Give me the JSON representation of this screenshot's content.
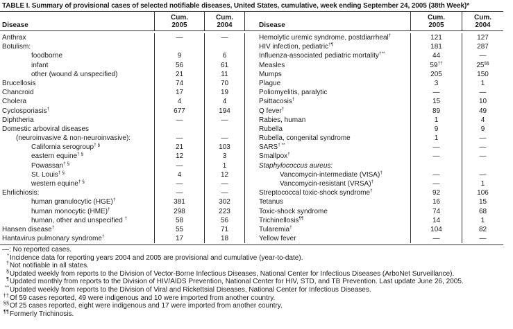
{
  "title": "TABLE I. Summary of provisional cases of selected notifiable diseases, United States, cumulative, week ending September 24, 2005 (38th Week)*",
  "header": {
    "disease": "Disease",
    "cum": "Cum.",
    "y2005": "2005",
    "y2004": "2004"
  },
  "left_rows": [
    {
      "label": "Anthrax",
      "sup": "",
      "indent": 0,
      "v2005": "—",
      "v2004": "—"
    },
    {
      "label": "Botulism:",
      "sup": "",
      "indent": 0,
      "v2005": "",
      "v2004": ""
    },
    {
      "label": "foodborne",
      "sup": "",
      "indent": 2,
      "v2005": "9",
      "v2004": "6"
    },
    {
      "label": "infant",
      "sup": "",
      "indent": 2,
      "v2005": "56",
      "v2004": "61"
    },
    {
      "label": "other (wound & unspecified)",
      "sup": "",
      "indent": 2,
      "v2005": "21",
      "v2004": "11"
    },
    {
      "label": "Brucellosis",
      "sup": "",
      "indent": 0,
      "v2005": "74",
      "v2004": "70"
    },
    {
      "label": "Chancroid",
      "sup": "",
      "indent": 0,
      "v2005": "17",
      "v2004": "19"
    },
    {
      "label": "Cholera",
      "sup": "",
      "indent": 0,
      "v2005": "4",
      "v2004": "4"
    },
    {
      "label": "Cyclosporiasis",
      "sup": "†",
      "indent": 0,
      "v2005": "677",
      "v2004": "194"
    },
    {
      "label": "Diphtheria",
      "sup": "",
      "indent": 0,
      "v2005": "—",
      "v2004": "—"
    },
    {
      "label": "Domestic arboviral diseases",
      "sup": "",
      "indent": 0,
      "v2005": "",
      "v2004": ""
    },
    {
      "label": "(neuroinvasive & non-neuroinvasive):",
      "sup": "",
      "indent": 1,
      "v2005": "—",
      "v2004": "—"
    },
    {
      "label": "California serogroup",
      "sup": "† §",
      "indent": 2,
      "v2005": "21",
      "v2004": "103"
    },
    {
      "label": "eastern equine",
      "sup": "† §",
      "indent": 2,
      "v2005": "12",
      "v2004": "3"
    },
    {
      "label": "Powassan",
      "sup": "† §",
      "indent": 2,
      "v2005": "—",
      "v2004": "1"
    },
    {
      "label": "St. Louis",
      "sup": "† §",
      "indent": 2,
      "v2005": "4",
      "v2004": "12"
    },
    {
      "label": "western equine",
      "sup": "† §",
      "indent": 2,
      "v2005": "—",
      "v2004": "—"
    },
    {
      "label": "Ehrlichiosis:",
      "sup": "",
      "indent": 0,
      "v2005": "—",
      "v2004": "—"
    },
    {
      "label": "human granulocytic (HGE)",
      "sup": "†",
      "indent": 2,
      "v2005": "381",
      "v2004": "302"
    },
    {
      "label": "human monocytic (HME)",
      "sup": "†",
      "indent": 2,
      "v2005": "298",
      "v2004": "223"
    },
    {
      "label": "human, other and unspecified ",
      "sup": "†",
      "indent": 2,
      "v2005": "58",
      "v2004": "56"
    },
    {
      "label": "Hansen disease",
      "sup": "†",
      "indent": 0,
      "v2005": "55",
      "v2004": "71"
    },
    {
      "label": "Hantavirus pulmonary syndrome",
      "sup": "†",
      "indent": 0,
      "v2005": "17",
      "v2004": "18"
    }
  ],
  "right_rows": [
    {
      "label": "Hemolytic uremic syndrome, postdiarrheal",
      "sup": "†",
      "indent": 0,
      "v2005": "121",
      "v2004": "127"
    },
    {
      "label": "HIV infection, pediatric",
      "sup": "†¶",
      "indent": 0,
      "v2005": "181",
      "v2004": "287"
    },
    {
      "label": "Influenza-associated pediatric mortality",
      "sup": "†**",
      "indent": 0,
      "v2005": "44",
      "v2004": "—"
    },
    {
      "label": "Measles",
      "sup": "",
      "indent": 0,
      "v2005": "59",
      "v2005_sup": "††",
      "v2004": "25",
      "v2004_sup": "§§"
    },
    {
      "label": "Mumps",
      "sup": "",
      "indent": 0,
      "v2005": "205",
      "v2004": "150"
    },
    {
      "label": "Plague",
      "sup": "",
      "indent": 0,
      "v2005": "3",
      "v2004": "1"
    },
    {
      "label": "Poliomyelitis, paralytic",
      "sup": "",
      "indent": 0,
      "v2005": "—",
      "v2004": "—"
    },
    {
      "label": "Psittacosis",
      "sup": "†",
      "indent": 0,
      "v2005": "15",
      "v2004": "10"
    },
    {
      "label": "Q fever",
      "sup": "†",
      "indent": 0,
      "v2005": "89",
      "v2004": "49"
    },
    {
      "label": "Rabies, human",
      "sup": "",
      "indent": 0,
      "v2005": "1",
      "v2004": "4"
    },
    {
      "label": "Rubella",
      "sup": "",
      "indent": 0,
      "v2005": "9",
      "v2004": "9"
    },
    {
      "label": "Rubella, congenital syndrome",
      "sup": "",
      "indent": 0,
      "v2005": "1",
      "v2004": "—"
    },
    {
      "label": "SARS",
      "sup": "† **",
      "indent": 0,
      "v2005": "—",
      "v2004": "—"
    },
    {
      "label": "Smallpox",
      "sup": "†",
      "indent": 0,
      "v2005": "—",
      "v2004": "—"
    },
    {
      "label": "Staphylococcus aureus:",
      "sup": "",
      "indent": 0,
      "italic": true,
      "v2005": "",
      "v2004": ""
    },
    {
      "label": "Vancomycin-intermediate (VISA)",
      "sup": "†",
      "indent": 3,
      "v2005": "—",
      "v2004": "—"
    },
    {
      "label": "Vancomycin-resistant (VRSA)",
      "sup": "†",
      "indent": 3,
      "v2005": "—",
      "v2004": "1"
    },
    {
      "label": "Streptococcal toxic-shock syndrome",
      "sup": "†",
      "indent": 0,
      "v2005": "92",
      "v2004": "106"
    },
    {
      "label": "Tetanus",
      "sup": "",
      "indent": 0,
      "v2005": "16",
      "v2004": "15"
    },
    {
      "label": "Toxic-shock syndrome",
      "sup": "",
      "indent": 0,
      "v2005": "74",
      "v2004": "68"
    },
    {
      "label": "Trichinellosis",
      "sup": "¶¶",
      "indent": 0,
      "v2005": "14",
      "v2004": "1"
    },
    {
      "label": "Tularemia",
      "sup": "†",
      "indent": 0,
      "v2005": "104",
      "v2004": "82"
    },
    {
      "label": "Yellow fever",
      "sup": "",
      "indent": 0,
      "v2005": "—",
      "v2004": "—"
    }
  ],
  "footnotes": [
    {
      "symbol": "",
      "text": "—: No reported cases."
    },
    {
      "symbol": "*",
      "text": "Incidence data for reporting years 2004 and 2005 are provisional and cumulative (year-to-date)."
    },
    {
      "symbol": "†",
      "text": "Not notifiable in all states."
    },
    {
      "symbol": "§",
      "text": "Updated weekly from reports to the Division of Vector-Borne Infectious Diseases, National Center for Infectious Diseases (ArboNet Surveillance)."
    },
    {
      "symbol": "¶",
      "text": "Updated monthly from reports to the Division of HIV/AIDS Prevention, National Center for HIV, STD, and TB Prevention. Last update June 26, 2005."
    },
    {
      "symbol": "**",
      "text": "Updated weekly from reports to the Division of Viral and Rickettsial Diseases, National Center for Infectious Diseases."
    },
    {
      "symbol": "††",
      "text": "Of 59 cases reported, 49 were indigenous and 10 were imported from another country."
    },
    {
      "symbol": "§§",
      "text": "Of 25 cases reported, eight were indigenous and 17 were imported from another country."
    },
    {
      "symbol": "¶¶",
      "text": "Formerly Trichinosis."
    }
  ]
}
